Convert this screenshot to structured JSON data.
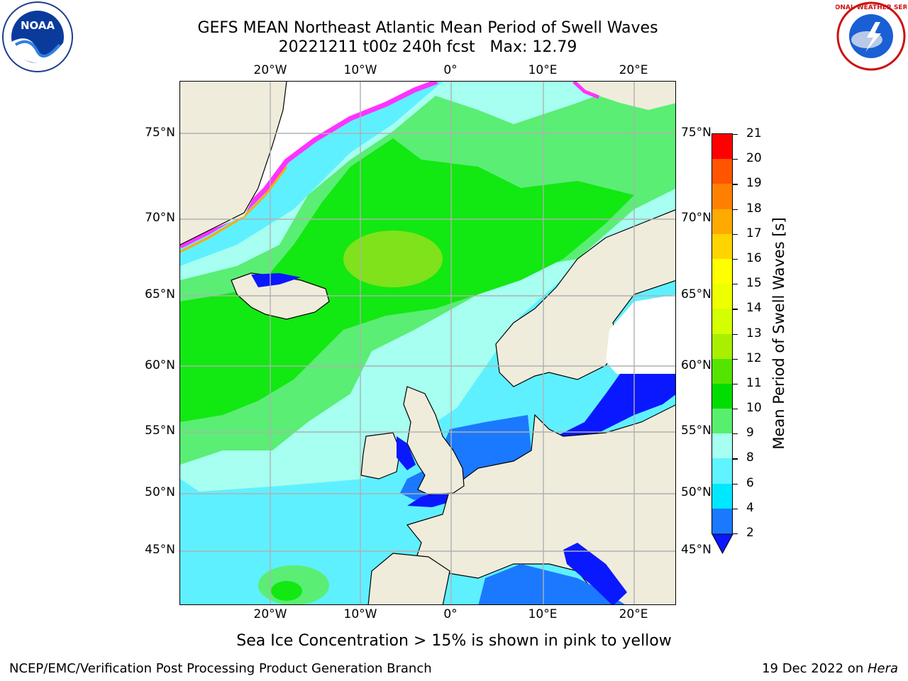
{
  "header": {
    "title_line1": "GEFS MEAN Northeast Atlantic Mean Period of Swell Waves",
    "title_line2": "20221211 t00z 240h fcst   Max: 12.79"
  },
  "logos": {
    "left": {
      "text": "NOAA",
      "icon": "noaa-logo"
    },
    "right": {
      "text": "NATIONAL WEATHER SERVICE",
      "icon": "nws-logo"
    }
  },
  "map": {
    "lon_labels_top": [
      "20°W",
      "10°W",
      "0°",
      "10°E",
      "20°E"
    ],
    "lon_labels_bottom": [
      "20°W",
      "10°W",
      "0°",
      "10°E",
      "20°E"
    ],
    "lat_labels_left": [
      "75°N",
      "70°N",
      "65°N",
      "60°N",
      "55°N",
      "50°N",
      "45°N"
    ],
    "lat_labels_right": [
      "75°N",
      "70°N",
      "65°N",
      "60°N",
      "55°N",
      "50°N",
      "45°N"
    ],
    "colors": {
      "land": "#efecdc",
      "ocean_cyan": "#5ff0ff",
      "ocean_light": "#a6fff0",
      "ocean_green": "#12e812",
      "ocean_lightgreen": "#5aee74",
      "shallow_blue": "#0a18ff",
      "mid_blue": "#1b79ff",
      "ice_pink": "#ff33ff",
      "grid": "#b0b0b0"
    }
  },
  "colorbar": {
    "label": "Mean Period of Swell Waves [s]",
    "ticks": [
      "21",
      "20",
      "19",
      "18",
      "17",
      "16",
      "15",
      "14",
      "13",
      "12",
      "11",
      "10",
      "9",
      "8",
      "6",
      "4",
      "2"
    ],
    "colors": [
      "#ff0000",
      "#ff2a00",
      "#ff5500",
      "#ff8000",
      "#ffaa00",
      "#ffd400",
      "#ffff00",
      "#eeff00",
      "#d4ff00",
      "#a8ef00",
      "#55e400",
      "#00dd00",
      "#59ef6e",
      "#a6fff0",
      "#5ff4ff",
      "#00e8ff",
      "#1b79ff"
    ],
    "extend_color": "#0a18ff"
  },
  "footnote": "Sea Ice Concentration > 15% is shown in pink to yellow",
  "credit": {
    "left": "NCEP/EMC/Verification Post Processing Product Generation Branch",
    "right_prefix": "19 Dec 2022 on ",
    "right_host": "Hera"
  }
}
